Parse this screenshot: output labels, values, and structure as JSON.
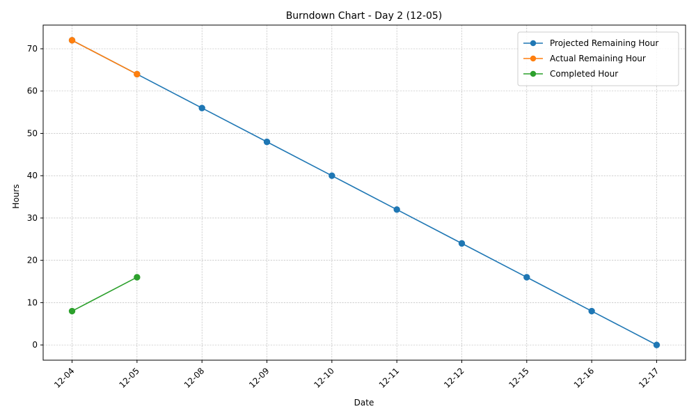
{
  "chart_data": {
    "type": "line",
    "title": "Burndown Chart - Day 2 (12-05)",
    "xlabel": "Date",
    "ylabel": "Hours",
    "categories": [
      "12-04",
      "12-05",
      "12-08",
      "12-09",
      "12-10",
      "12-11",
      "12-12",
      "12-15",
      "12-16",
      "12-17"
    ],
    "ylim": [
      -3.6,
      75.6
    ],
    "yticks": [
      0,
      10,
      20,
      30,
      40,
      50,
      60,
      70
    ],
    "grid": true,
    "legend_position": "top-right",
    "x_tick_rotation_deg": 45,
    "series": [
      {
        "name": "Projected Remaining Hour",
        "color": "#1f77b4",
        "marker": "circle",
        "values": [
          72,
          64,
          56,
          48,
          40,
          32,
          24,
          16,
          8,
          0
        ]
      },
      {
        "name": "Actual Remaining Hour",
        "color": "#ff7f0e",
        "marker": "circle",
        "values": [
          72,
          64,
          null,
          null,
          null,
          null,
          null,
          null,
          null,
          null
        ]
      },
      {
        "name": "Completed Hour",
        "color": "#2ca02c",
        "marker": "circle",
        "values": [
          8,
          16,
          null,
          null,
          null,
          null,
          null,
          null,
          null,
          null
        ]
      }
    ]
  }
}
